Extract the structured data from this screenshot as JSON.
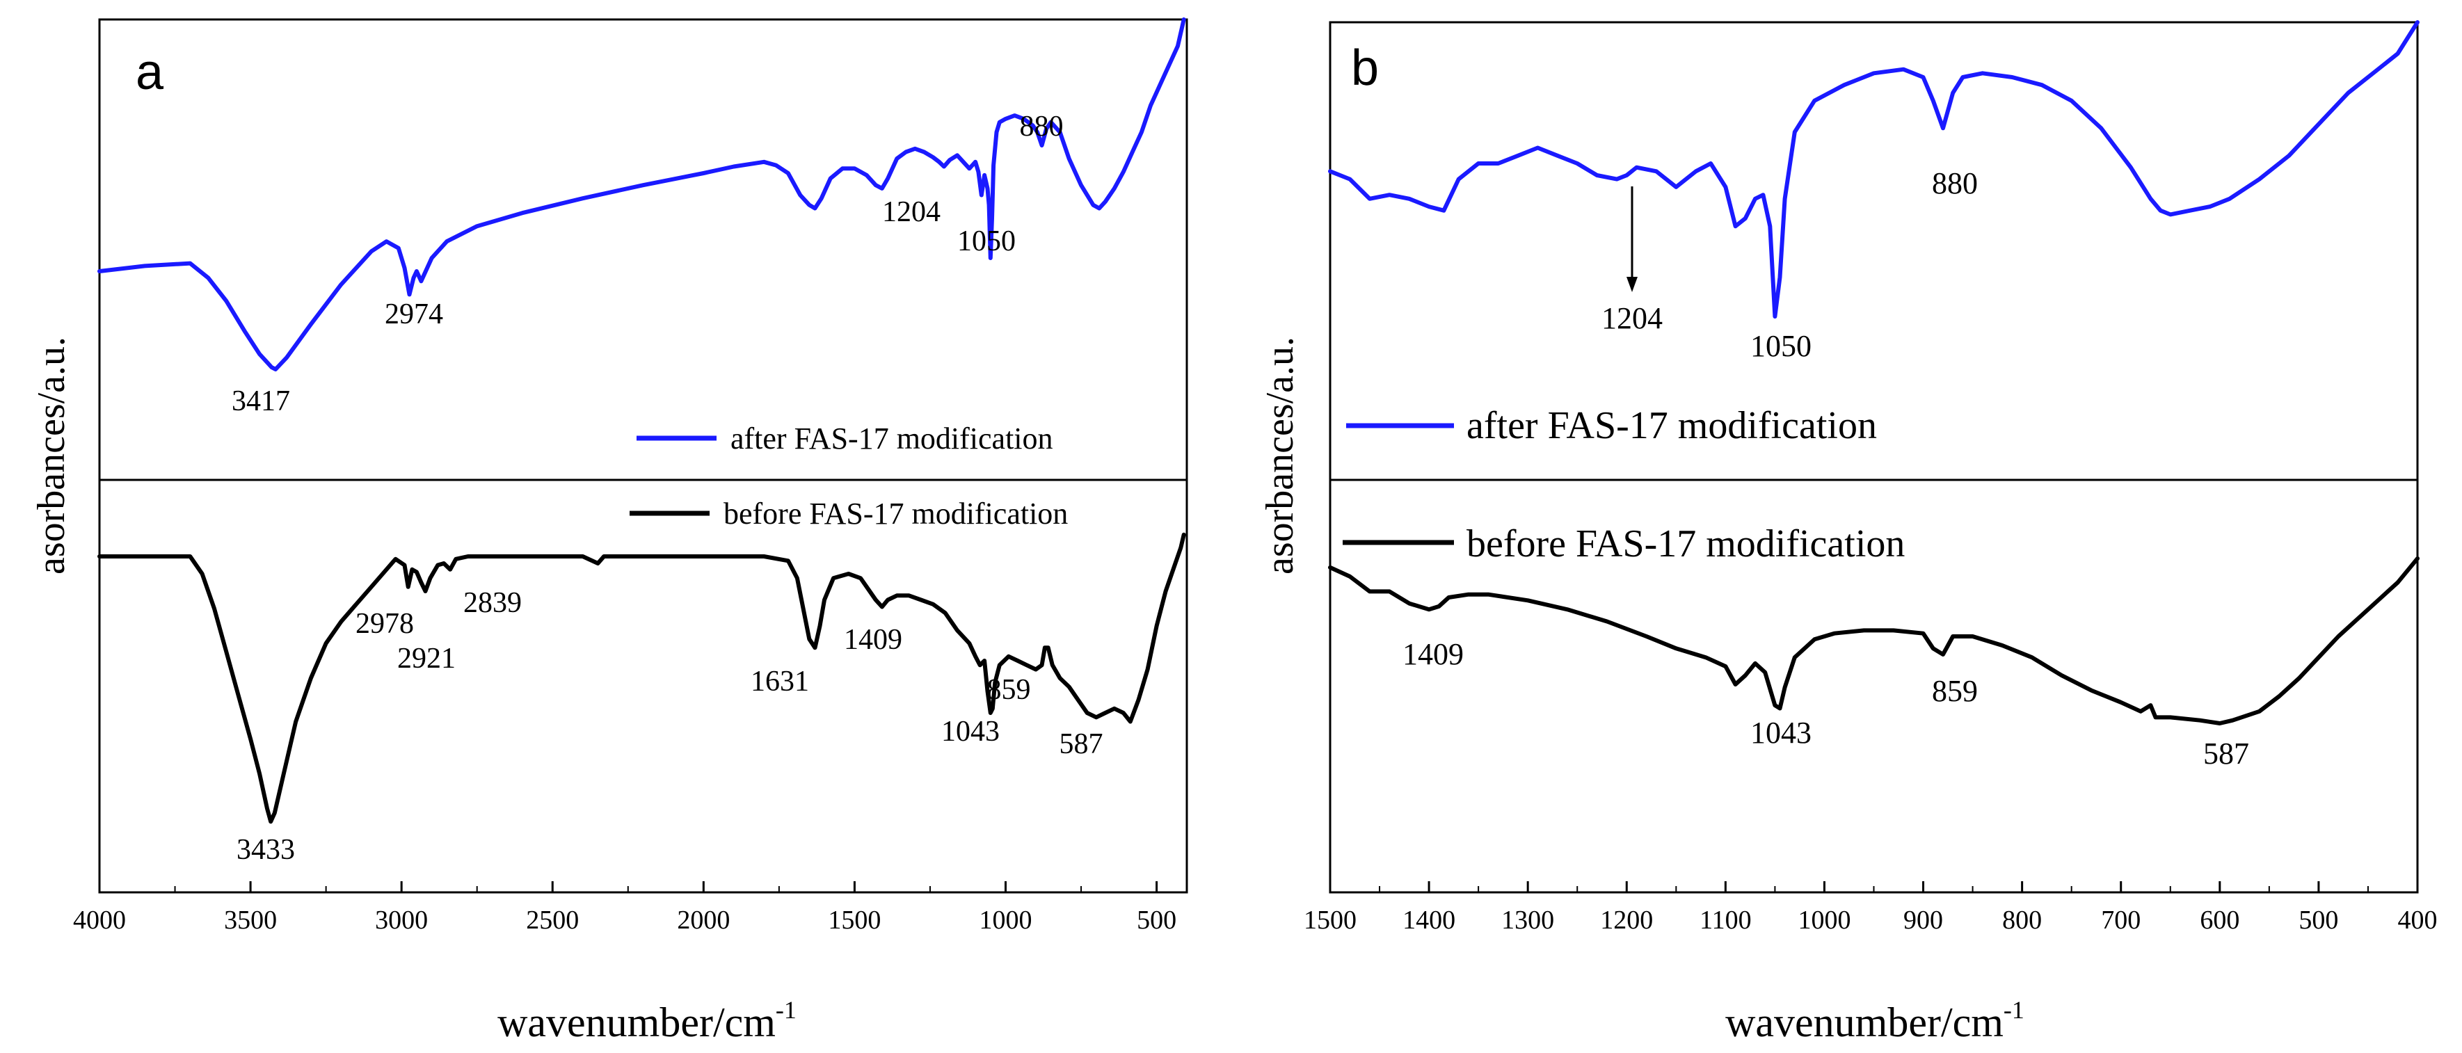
{
  "chart_data": [
    {
      "panel_label": "a",
      "type": "line",
      "xlabel": "wavenumber/cm",
      "xlabel_sup": "-1",
      "ylabel": "asorbances/a.u.",
      "xlim": [
        4000,
        400
      ],
      "xticks": [
        4000,
        3500,
        3000,
        2500,
        2000,
        1500,
        1000,
        500
      ],
      "legend": {
        "placement": "bottom-right of each sub-panel"
      },
      "series": [
        {
          "name": "after FAS-17 modification",
          "color": "#1a1aff",
          "x": [
            4000,
            3850,
            3700,
            3640,
            3580,
            3520,
            3470,
            3430,
            3417,
            3380,
            3300,
            3200,
            3100,
            3050,
            3010,
            2990,
            2974,
            2960,
            2950,
            2935,
            2920,
            2900,
            2850,
            2750,
            2600,
            2400,
            2200,
            2000,
            1900,
            1800,
            1760,
            1720,
            1680,
            1650,
            1631,
            1610,
            1580,
            1540,
            1500,
            1460,
            1430,
            1409,
            1390,
            1360,
            1330,
            1300,
            1270,
            1240,
            1220,
            1204,
            1185,
            1160,
            1140,
            1120,
            1100,
            1090,
            1080,
            1070,
            1060,
            1055,
            1050,
            1045,
            1040,
            1030,
            1020,
            1000,
            970,
            940,
            910,
            895,
            880,
            865,
            850,
            820,
            790,
            750,
            710,
            690,
            670,
            640,
            610,
            580,
            550,
            520,
            490,
            460,
            430,
            410
          ],
          "y": [
            12.0,
            12.8,
            13.2,
            11.0,
            7.5,
            3.0,
            -0.5,
            -2.5,
            -2.8,
            -1.0,
            4.0,
            10.0,
            15.0,
            16.5,
            15.5,
            12.5,
            8.5,
            11.0,
            12.0,
            10.5,
            12.0,
            14.0,
            16.5,
            18.8,
            20.8,
            23.0,
            25.0,
            26.8,
            27.8,
            28.5,
            28.0,
            26.8,
            23.5,
            22.0,
            21.5,
            23.0,
            26.0,
            27.5,
            27.5,
            26.5,
            25.0,
            24.5,
            26.0,
            29.0,
            30.0,
            30.5,
            30.0,
            29.2,
            28.5,
            27.8,
            28.8,
            29.5,
            28.5,
            27.5,
            28.5,
            27.0,
            23.5,
            26.5,
            24.5,
            22.0,
            14.0,
            20.0,
            28.0,
            33.0,
            34.5,
            35.0,
            35.5,
            35.0,
            34.0,
            33.0,
            31.0,
            33.5,
            34.5,
            33.0,
            29.0,
            25.0,
            22.0,
            21.5,
            22.5,
            24.5,
            27.0,
            30.0,
            33.0,
            37.0,
            40.0,
            43.0,
            46.0,
            50.0
          ]
        },
        {
          "name": "before FAS-17 modification",
          "color": "#000000",
          "x": [
            4000,
            3850,
            3700,
            3660,
            3620,
            3580,
            3540,
            3500,
            3470,
            3445,
            3433,
            3420,
            3390,
            3350,
            3300,
            3250,
            3200,
            3150,
            3100,
            3050,
            3020,
            2990,
            2978,
            2965,
            2950,
            2935,
            2921,
            2905,
            2880,
            2860,
            2839,
            2820,
            2780,
            2600,
            2400,
            2350,
            2330,
            2200,
            2000,
            1800,
            1720,
            1690,
            1670,
            1650,
            1631,
            1615,
            1600,
            1570,
            1520,
            1480,
            1450,
            1430,
            1409,
            1390,
            1360,
            1320,
            1280,
            1240,
            1200,
            1160,
            1120,
            1100,
            1085,
            1070,
            1060,
            1050,
            1043,
            1035,
            1020,
            990,
            960,
            930,
            900,
            880,
            870,
            859,
            845,
            820,
            790,
            760,
            730,
            700,
            670,
            640,
            610,
            587,
            560,
            530,
            500,
            470,
            440,
            420,
            410
          ],
          "y": [
            0.0,
            0.0,
            0.0,
            -2.0,
            -6.0,
            -11.0,
            -16.0,
            -21.0,
            -25.0,
            -29.0,
            -30.5,
            -29.5,
            -25.0,
            -19.0,
            -14.0,
            -10.0,
            -7.5,
            -5.5,
            -3.5,
            -1.5,
            -0.3,
            -1.0,
            -3.5,
            -1.5,
            -1.8,
            -3.0,
            -4.0,
            -2.5,
            -1.0,
            -0.8,
            -1.5,
            -0.3,
            0.0,
            0.0,
            0.0,
            -0.8,
            0.0,
            0.0,
            0.0,
            0.0,
            -0.5,
            -2.5,
            -6.0,
            -9.5,
            -10.5,
            -8.0,
            -5.0,
            -2.5,
            -2.0,
            -2.5,
            -4.0,
            -5.0,
            -5.8,
            -5.0,
            -4.5,
            -4.5,
            -5.0,
            -5.5,
            -6.5,
            -8.5,
            -10.0,
            -11.5,
            -12.5,
            -12.0,
            -15.5,
            -18.0,
            -17.5,
            -14.5,
            -12.5,
            -11.5,
            -12.0,
            -12.5,
            -13.0,
            -12.5,
            -10.5,
            -10.5,
            -12.5,
            -14.0,
            -15.0,
            -16.5,
            -18.0,
            -18.5,
            -18.0,
            -17.5,
            -18.0,
            -19.0,
            -16.5,
            -13.0,
            -8.0,
            -4.0,
            -1.0,
            1.0,
            2.5
          ]
        }
      ],
      "annotations_after": [
        {
          "text": "3417",
          "x": 3417
        },
        {
          "text": "2974",
          "x": 2974
        },
        {
          "text": "1204",
          "x": 1204
        },
        {
          "text": "1050",
          "x": 1050
        },
        {
          "text": "880",
          "x": 880
        }
      ],
      "annotations_before": [
        {
          "text": "3433",
          "x": 3433
        },
        {
          "text": "2978",
          "x": 2978
        },
        {
          "text": "2921",
          "x": 2921
        },
        {
          "text": "2839",
          "x": 2839
        },
        {
          "text": "1631",
          "x": 1631
        },
        {
          "text": "1409",
          "x": 1409
        },
        {
          "text": "1043",
          "x": 1043
        },
        {
          "text": "859",
          "x": 859
        },
        {
          "text": "587",
          "x": 587
        }
      ]
    },
    {
      "panel_label": "b",
      "type": "line",
      "xlabel": "wavenumber/cm",
      "xlabel_sup": "-1",
      "ylabel": "asorbances/a.u.",
      "xlim": [
        1500,
        400
      ],
      "xticks": [
        1500,
        1400,
        1300,
        1200,
        1100,
        1000,
        900,
        800,
        700,
        600,
        500,
        400
      ],
      "legend": {
        "placement": "bottom-left of each sub-panel"
      },
      "series": [
        {
          "name": "after FAS-17 modification",
          "color": "#1a1aff",
          "x": [
            1500,
            1480,
            1460,
            1440,
            1420,
            1400,
            1385,
            1370,
            1350,
            1330,
            1310,
            1290,
            1270,
            1250,
            1230,
            1210,
            1200,
            1190,
            1170,
            1150,
            1130,
            1115,
            1100,
            1090,
            1080,
            1070,
            1062,
            1055,
            1050,
            1045,
            1040,
            1030,
            1010,
            980,
            950,
            920,
            900,
            890,
            880,
            870,
            860,
            840,
            810,
            780,
            750,
            720,
            690,
            670,
            660,
            650,
            630,
            610,
            590,
            560,
            530,
            500,
            470,
            440,
            420,
            400
          ],
          "y": [
            0.62,
            0.6,
            0.55,
            0.56,
            0.55,
            0.53,
            0.52,
            0.6,
            0.64,
            0.64,
            0.66,
            0.68,
            0.66,
            0.64,
            0.61,
            0.6,
            0.61,
            0.63,
            0.62,
            0.58,
            0.62,
            0.64,
            0.58,
            0.48,
            0.5,
            0.55,
            0.56,
            0.48,
            0.25,
            0.35,
            0.55,
            0.72,
            0.8,
            0.84,
            0.87,
            0.88,
            0.86,
            0.8,
            0.73,
            0.82,
            0.86,
            0.87,
            0.86,
            0.84,
            0.8,
            0.73,
            0.63,
            0.55,
            0.52,
            0.51,
            0.52,
            0.53,
            0.55,
            0.6,
            0.66,
            0.74,
            0.82,
            0.88,
            0.92,
            1.0
          ]
        },
        {
          "name": "before FAS-17 modification",
          "color": "#000000",
          "x": [
            1500,
            1480,
            1460,
            1440,
            1420,
            1400,
            1390,
            1380,
            1360,
            1340,
            1300,
            1260,
            1220,
            1180,
            1150,
            1120,
            1100,
            1090,
            1080,
            1070,
            1060,
            1050,
            1045,
            1040,
            1030,
            1010,
            990,
            960,
            930,
            900,
            890,
            880,
            870,
            850,
            820,
            790,
            760,
            730,
            700,
            680,
            670,
            665,
            650,
            620,
            600,
            587,
            560,
            540,
            520,
            500,
            480,
            460,
            440,
            420,
            400
          ],
          "y": [
            0.5,
            0.47,
            0.42,
            0.42,
            0.38,
            0.36,
            0.37,
            0.4,
            0.41,
            0.41,
            0.39,
            0.36,
            0.32,
            0.27,
            0.23,
            0.2,
            0.17,
            0.11,
            0.14,
            0.18,
            0.15,
            0.04,
            0.03,
            0.1,
            0.2,
            0.26,
            0.28,
            0.29,
            0.29,
            0.28,
            0.23,
            0.21,
            0.27,
            0.27,
            0.24,
            0.2,
            0.14,
            0.09,
            0.05,
            0.02,
            0.04,
            0.0,
            0.0,
            -0.01,
            -0.02,
            -0.01,
            0.02,
            0.07,
            0.13,
            0.2,
            0.27,
            0.33,
            0.39,
            0.45,
            0.53
          ]
        }
      ],
      "annotations_after": [
        {
          "text": "1204",
          "x": 1204
        },
        {
          "text": "1050",
          "x": 1050
        },
        {
          "text": "880",
          "x": 880
        }
      ],
      "annotations_before": [
        {
          "text": "1409",
          "x": 1409
        },
        {
          "text": "1043",
          "x": 1043
        },
        {
          "text": "859",
          "x": 859
        },
        {
          "text": "587",
          "x": 587
        }
      ]
    }
  ]
}
